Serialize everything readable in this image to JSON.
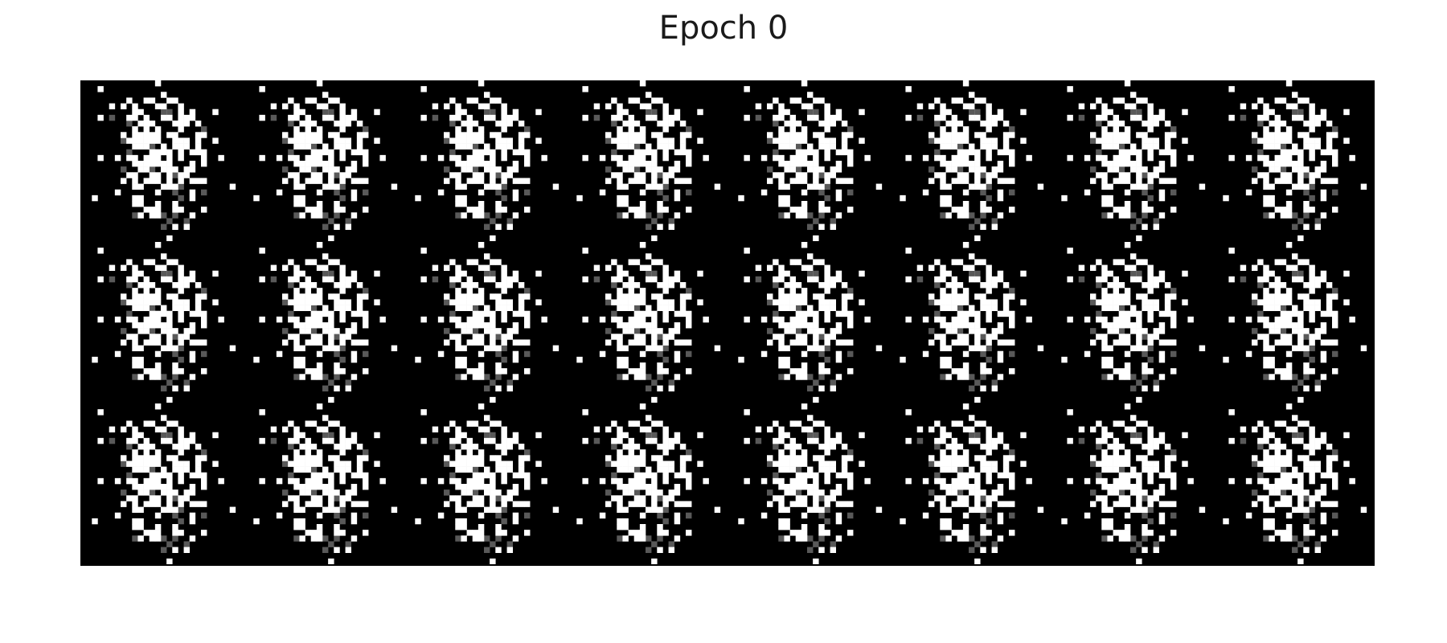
{
  "figure": {
    "title": "Epoch 0",
    "background_color": "#000000",
    "pixel_color": "#ffffff",
    "grid_rows": 3,
    "grid_cols": 8,
    "sample_side_pixels": 28
  }
}
